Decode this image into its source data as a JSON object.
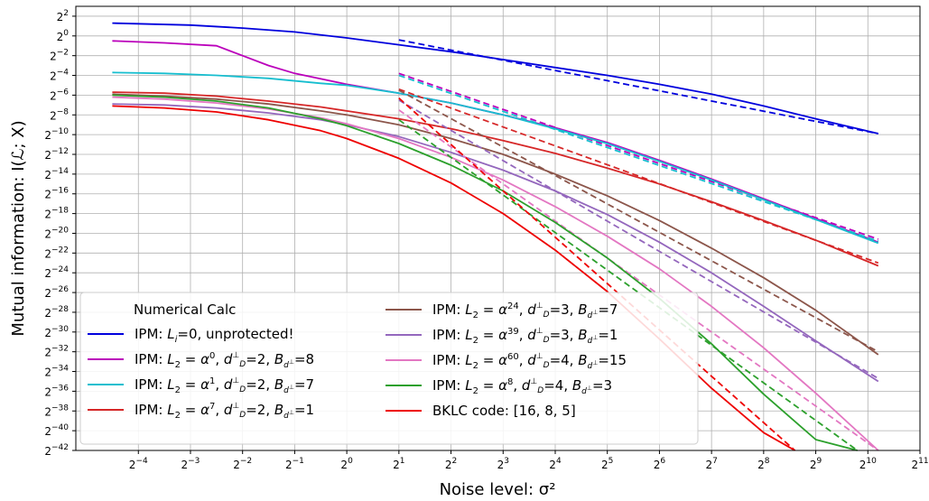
{
  "chart_data": {
    "type": "line",
    "xlabel": "Noise level: σ²",
    "ylabel": "Mutual information: I(ℒ; X)",
    "x_scale": "log2",
    "y_scale": "log2",
    "xlim_exp": [
      -5.2,
      11
    ],
    "ylim_exp": [
      -42,
      3
    ],
    "x_tick_exponents": [
      -4,
      -3,
      -2,
      -1,
      0,
      1,
      2,
      3,
      4,
      5,
      6,
      7,
      8,
      9,
      10,
      11
    ],
    "y_tick_exponents": [
      2,
      0,
      -2,
      -4,
      -6,
      -8,
      -10,
      -12,
      -14,
      -16,
      -18,
      -20,
      -22,
      -24,
      -26,
      -28,
      -30,
      -32,
      -34,
      -36,
      -38,
      -40,
      -42
    ],
    "grid": true,
    "legend": {
      "title": "Numerical Calc",
      "placement": "lower-left",
      "col1": [
        {
          "series": 0,
          "label": "IPM: L_i=0, unprotected!"
        },
        {
          "series": 1,
          "label": "IPM: L_2=α^0, d=2, B=8"
        },
        {
          "series": 2,
          "label": "IPM: L_2=α^1, d=2, B=7"
        },
        {
          "series": 3,
          "label": "IPM: L_2=α^7, d=2, B=1"
        }
      ],
      "col2": [
        {
          "series": 4,
          "label": "IPM: L_2=α^24, d=3, B=7"
        },
        {
          "series": 5,
          "label": "IPM: L_2=α^39, d=3, B=1"
        },
        {
          "series": 6,
          "label": "IPM: L_2=α^60, d=4, B=15"
        },
        {
          "series": 7,
          "label": "IPM: L_2=α^8, d=4, B=3"
        },
        {
          "series": 8,
          "label": "BKLC code: [16, 8, 5]"
        }
      ]
    },
    "series": [
      {
        "name": "IPM: L_i=0, unprotected!",
        "color": "#0000dd",
        "x_exp": [
          -4.5,
          -3,
          -2,
          -1,
          0,
          1,
          2,
          3,
          4,
          5,
          6,
          7,
          8,
          9,
          10.2
        ],
        "y_exp": [
          1.3,
          1.1,
          0.8,
          0.4,
          -0.2,
          -0.9,
          -1.6,
          -2.4,
          -3.2,
          -4.0,
          -4.9,
          -5.9,
          -7.1,
          -8.4,
          -9.9
        ],
        "asym_x_exp": [
          1,
          10.2
        ],
        "asym_y_exp": [
          -0.4,
          -9.9
        ]
      },
      {
        "name": "IPM: L_2=α^0, d=2, B=8",
        "color": "#bb00bb",
        "x_exp": [
          -4.5,
          -3.5,
          -2.5,
          -2,
          -1.5,
          -1,
          0,
          1,
          2,
          3,
          4,
          5,
          6,
          7,
          8,
          9,
          10.2
        ],
        "y_exp": [
          -0.5,
          -0.7,
          -1.0,
          -2.0,
          -3.0,
          -3.8,
          -4.9,
          -5.8,
          -6.8,
          -8.0,
          -9.3,
          -10.8,
          -12.6,
          -14.5,
          -16.5,
          -18.5,
          -20.9
        ],
        "asym_x_exp": [
          1,
          10.2
        ],
        "asym_y_exp": [
          -3.8,
          -20.6
        ]
      },
      {
        "name": "IPM: L_2=α^1, d=2, B=7",
        "color": "#17becf",
        "x_exp": [
          -4.5,
          -3.5,
          -2.5,
          -1.5,
          -0.5,
          0,
          1,
          2,
          3,
          4,
          5,
          6,
          7,
          8,
          9,
          10.2
        ],
        "y_exp": [
          -3.7,
          -3.8,
          -4.0,
          -4.3,
          -4.8,
          -5.0,
          -5.8,
          -6.8,
          -8.0,
          -9.4,
          -10.9,
          -12.7,
          -14.6,
          -16.6,
          -18.6,
          -21.0
        ],
        "asym_x_exp": [
          1,
          10.2
        ],
        "asym_y_exp": [
          -4.0,
          -20.8
        ]
      },
      {
        "name": "IPM: L_2=α^7, d=2, B=1",
        "color": "#d62728",
        "x_exp": [
          -4.5,
          -3.5,
          -2.5,
          -1.5,
          -0.5,
          0,
          1,
          2,
          3,
          4,
          5,
          6,
          7,
          8,
          9,
          10.2
        ],
        "y_exp": [
          -5.7,
          -5.8,
          -6.1,
          -6.6,
          -7.2,
          -7.6,
          -8.4,
          -9.4,
          -10.6,
          -11.9,
          -13.4,
          -15.0,
          -16.8,
          -18.7,
          -20.7,
          -23.3
        ],
        "asym_x_exp": [
          1,
          10.2
        ],
        "asym_y_exp": [
          -5.4,
          -23.0
        ]
      },
      {
        "name": "IPM: L_2=α^24, d=3, B=7",
        "color": "#8c564b",
        "x_exp": [
          -4.5,
          -3.5,
          -2.5,
          -1.5,
          -0.5,
          0,
          1,
          2,
          3,
          4,
          5,
          6,
          7,
          8,
          9,
          10.2
        ],
        "y_exp": [
          -5.9,
          -6.1,
          -6.4,
          -6.9,
          -7.6,
          -8.0,
          -9.0,
          -10.4,
          -12.0,
          -14.0,
          -16.2,
          -18.7,
          -21.5,
          -24.5,
          -27.8,
          -32.3
        ],
        "asym_x_exp": [
          1,
          10.2
        ],
        "asym_y_exp": [
          -5.5,
          -32.0
        ]
      },
      {
        "name": "IPM: L_2=α^39, d=3, B=1",
        "color": "#9467bd",
        "x_exp": [
          -4.5,
          -3.5,
          -2.5,
          -1.5,
          -0.5,
          0,
          1,
          2,
          3,
          4,
          5,
          6,
          7,
          8,
          9,
          10.2
        ],
        "y_exp": [
          -6.9,
          -7.0,
          -7.3,
          -7.8,
          -8.5,
          -9.0,
          -10.2,
          -11.8,
          -13.6,
          -15.7,
          -18.1,
          -20.9,
          -24.0,
          -27.4,
          -30.9,
          -35.0
        ],
        "asym_x_exp": [
          1,
          10.2
        ],
        "asym_y_exp": [
          -6.5,
          -34.7
        ]
      },
      {
        "name": "IPM: L_2=α^60, d=4, B=15",
        "color": "#e377c2",
        "x_exp": [
          -4.5,
          -3.5,
          -2.5,
          -1.5,
          -0.5,
          0,
          1,
          2,
          3,
          4,
          5,
          6,
          7,
          8,
          9,
          10.2
        ],
        "y_exp": [
          -6.2,
          -6.4,
          -6.8,
          -7.4,
          -8.3,
          -8.9,
          -10.4,
          -12.3,
          -14.6,
          -17.3,
          -20.3,
          -23.6,
          -27.4,
          -31.6,
          -36.2,
          -42.0
        ],
        "asym_x_exp": [
          1,
          10.2
        ],
        "asym_y_exp": [
          -7.5,
          -42.0
        ]
      },
      {
        "name": "IPM: L_2=α^8, d=4, B=3",
        "color": "#2ca02c",
        "x_exp": [
          -4.5,
          -3.5,
          -2.5,
          -1.5,
          -0.5,
          0,
          1,
          2,
          3,
          4,
          5,
          6,
          7,
          8,
          9,
          9.8
        ],
        "y_exp": [
          -6.0,
          -6.2,
          -6.6,
          -7.3,
          -8.4,
          -9.1,
          -10.9,
          -13.1,
          -15.7,
          -18.9,
          -22.5,
          -26.6,
          -31.2,
          -36.3,
          -40.9,
          -42.0
        ],
        "asym_x_exp": [
          1,
          9.8
        ],
        "asym_y_exp": [
          -8.5,
          -42.0
        ]
      },
      {
        "name": "BKLC code: [16, 8, 5]",
        "color": "#ee0000",
        "x_exp": [
          -4.5,
          -3.5,
          -2.5,
          -1.5,
          -0.5,
          0,
          1,
          2,
          3,
          4,
          5,
          6,
          7,
          8,
          8.6
        ],
        "y_exp": [
          -7.1,
          -7.3,
          -7.7,
          -8.5,
          -9.6,
          -10.4,
          -12.4,
          -14.9,
          -18.0,
          -21.7,
          -25.9,
          -30.7,
          -35.7,
          -40.2,
          -42.0
        ],
        "asym_x_exp": [
          1,
          8.6
        ],
        "asym_y_exp": [
          -6.3,
          -42.0
        ]
      }
    ]
  }
}
